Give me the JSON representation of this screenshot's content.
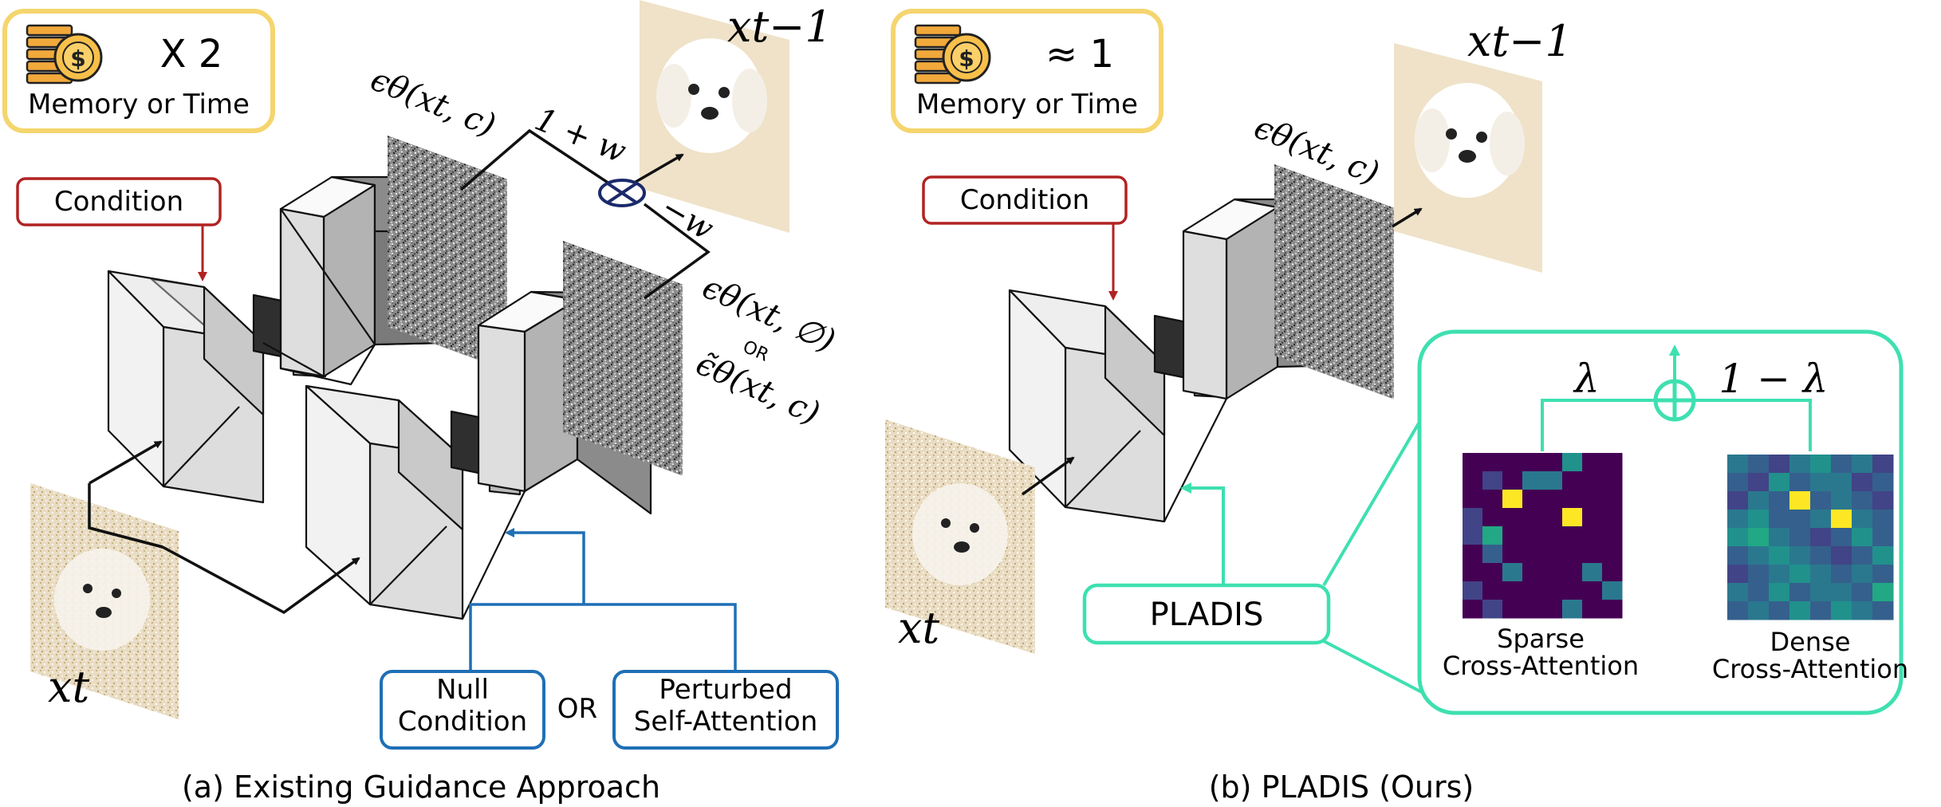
{
  "left_panel": {
    "cost_badge": {
      "icon": "coins-dollar-icon",
      "multiplier": "X 2",
      "label": "Memory or Time"
    },
    "condition_label": "Condition",
    "eps_cond": "ϵθ(xt, c)",
    "weight_pos": "1 + w",
    "weight_neg": "−w",
    "eps_uncond": "ϵθ(xt, ∅)",
    "or_small": "OR",
    "eps_perturbed": "ϵ̃θ(xt, c)",
    "x_prev": "xt−1",
    "x_t": "xt",
    "null_condition": [
      "Null",
      "Condition"
    ],
    "or_label": "OR",
    "perturbed": [
      "Perturbed",
      "Self-Attention"
    ],
    "caption": "(a) Existing Guidance Approach"
  },
  "right_panel": {
    "cost_badge": {
      "icon": "coins-dollar-icon",
      "multiplier": "≈ 1",
      "label": "Memory or Time"
    },
    "condition_label": "Condition",
    "eps_cond": "ϵθ(xt, c)",
    "x_prev": "xt−1",
    "x_t": "xt",
    "pladis_label": "PLADIS",
    "lambda": "λ",
    "one_minus_lambda": "1 − λ",
    "sparse_label": [
      "Sparse",
      "Cross-Attention"
    ],
    "dense_label": [
      "Dense",
      "Cross-Attention"
    ],
    "caption": "(b) PLADIS (Ours)"
  },
  "colors": {
    "badge_border": "#f5d56e",
    "condition_red": "#b22222",
    "blue": "#1f6fb5",
    "pladis_green": "#3ee0b0",
    "viridis_dark": "#440154",
    "viridis_yellow": "#fde725"
  }
}
